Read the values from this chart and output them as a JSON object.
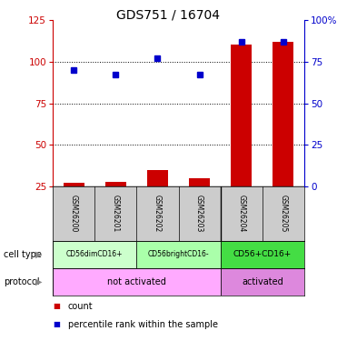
{
  "title": "GDS751 / 16704",
  "samples": [
    "GSM26200",
    "GSM26201",
    "GSM26202",
    "GSM26203",
    "GSM26204",
    "GSM26205"
  ],
  "count_values": [
    27,
    28,
    35,
    30,
    110,
    112
  ],
  "percentile_values": [
    95,
    92,
    102,
    92,
    112,
    112
  ],
  "left_ylim": [
    25,
    125
  ],
  "left_yticks": [
    25,
    50,
    75,
    100,
    125
  ],
  "right_ylim": [
    0,
    100
  ],
  "right_yticks": [
    0,
    25,
    50,
    75,
    100
  ],
  "right_yticklabels": [
    "0",
    "25",
    "50",
    "75",
    "100%"
  ],
  "bar_color": "#cc0000",
  "dot_color": "#0000cc",
  "cell_types": [
    {
      "label": "CD56dimCD16+",
      "span": [
        0,
        2
      ],
      "color": "#ccffcc"
    },
    {
      "label": "CD56brightCD16-",
      "span": [
        2,
        4
      ],
      "color": "#aaffaa"
    },
    {
      "label": "CD56+CD16+",
      "span": [
        4,
        6
      ],
      "color": "#44dd44"
    }
  ],
  "protocols": [
    {
      "label": "not activated",
      "span": [
        0,
        4
      ],
      "color": "#ffaaff"
    },
    {
      "label": "activated",
      "span": [
        4,
        6
      ],
      "color": "#dd88dd"
    }
  ],
  "left_axis_color": "#cc0000",
  "right_axis_color": "#0000cc",
  "bar_width": 0.5,
  "legend_count_label": "count",
  "legend_percentile_label": "percentile rank within the sample",
  "gridline_ticks": [
    50,
    75,
    100
  ],
  "sample_bg_color": "#cccccc",
  "cell_type_label": "cell type",
  "protocol_label": "protocol"
}
